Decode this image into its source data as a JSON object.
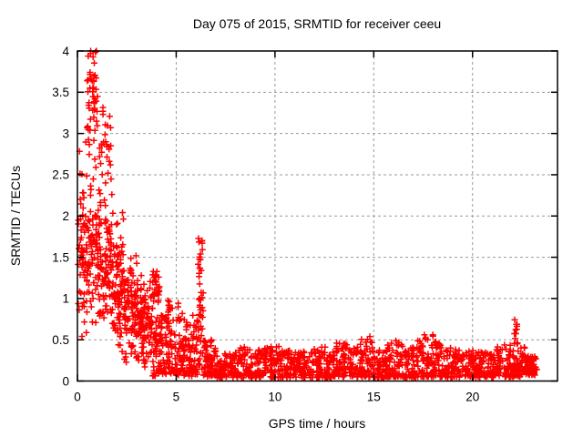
{
  "page": {
    "background_color": "#ffffff"
  },
  "chart_data": {
    "type": "scatter",
    "title": "Day 075 of 2015, SRMTID for receiver ceeu",
    "xlabel": "GPS time / hours",
    "ylabel": "SRMTID / TECUs",
    "xlim": [
      0,
      24.3
    ],
    "ylim": [
      0,
      4
    ],
    "xticks": [
      0,
      5,
      10,
      15,
      20
    ],
    "yticks": [
      0,
      0.5,
      1,
      1.5,
      2,
      2.5,
      3,
      3.5,
      4
    ],
    "grid": {
      "show": true,
      "color": "#9a9a9a",
      "dash": "3 3",
      "width": 1
    },
    "axis": {
      "color": "#000000",
      "border_width": 1.5,
      "tick_length": 7,
      "tick_width": 1.5,
      "ticks_mirrored": true
    },
    "legend": {
      "show": false
    },
    "marker": {
      "shape": "plus",
      "color": "#ff0000",
      "size": 7,
      "stroke_width": 1.5
    },
    "series": [
      {
        "name": "SRMTID",
        "description": "Dense scatter: high noisy values (0.3-4.0, clipped at 4) during hours 0-2.5 decaying to a low baseline ~0.05-0.35 from hour 7 to 23.3; vertical spike to 1.73 at hour 6.2; small bumps to ~0.5 near hours 13.4, 14.6, 16.0, 17.6; vertical spike to 0.76 at hour 22.2; data ends ~23.3 h",
        "point_cloud_model": {
          "seed": 20150075,
          "comment": "segments: [x_start, x_end, n_points, y_low, y_high, mode(m=triangular,p=power-low-biased,u=uniform), k]",
          "segments": [
            [
              0.03,
              0.48,
              60,
              0.3,
              2.95,
              "m",
              0
            ],
            [
              0.48,
              1.02,
              52,
              2.8,
              4.1,
              "m",
              0
            ],
            [
              0.45,
              1.05,
              75,
              0.55,
              2.8,
              "m",
              0
            ],
            [
              1.05,
              1.7,
              28,
              2.2,
              3.48,
              "m",
              0
            ],
            [
              1.05,
              1.75,
              95,
              0.5,
              2.35,
              "m",
              0
            ],
            [
              1.75,
              2.35,
              95,
              0.3,
              2.05,
              "m",
              0
            ],
            [
              2.35,
              3.05,
              95,
              0.15,
              1.6,
              "m",
              0
            ],
            [
              3.05,
              3.8,
              95,
              0.1,
              1.38,
              "m",
              0
            ],
            [
              3.78,
              4.15,
              30,
              0.85,
              1.45,
              "m",
              0
            ],
            [
              3.8,
              4.55,
              85,
              0.06,
              0.8,
              "p",
              1.4
            ],
            [
              4.55,
              5.35,
              90,
              0.07,
              1.0,
              "p",
              1.5
            ],
            [
              5.35,
              6.08,
              80,
              0.06,
              0.8,
              "p",
              1.5
            ],
            [
              6.1,
              6.38,
              48,
              0.12,
              1.73,
              "p",
              1.1
            ],
            [
              6.38,
              7.0,
              70,
              0.05,
              0.5,
              "p",
              1.4
            ],
            [
              7.0,
              8.0,
              78,
              0.04,
              0.34,
              "p",
              1.5
            ],
            [
              8.0,
              8.6,
              48,
              0.04,
              0.42,
              "p",
              1.5
            ],
            [
              8.6,
              9.4,
              62,
              0.04,
              0.38,
              "p",
              1.5
            ],
            [
              9.4,
              10.2,
              62,
              0.04,
              0.42,
              "p",
              1.5
            ],
            [
              10.2,
              11.0,
              62,
              0.04,
              0.4,
              "p",
              1.5
            ],
            [
              11.0,
              11.8,
              62,
              0.04,
              0.36,
              "p",
              1.5
            ],
            [
              11.8,
              12.6,
              62,
              0.04,
              0.42,
              "p",
              1.5
            ],
            [
              12.6,
              13.1,
              40,
              0.04,
              0.36,
              "p",
              1.5
            ],
            [
              13.1,
              13.75,
              55,
              0.05,
              0.5,
              "p",
              1.5
            ],
            [
              13.75,
              14.3,
              45,
              0.05,
              0.44,
              "p",
              1.5
            ],
            [
              14.3,
              15.0,
              60,
              0.05,
              0.55,
              "p",
              1.5
            ],
            [
              15.0,
              15.6,
              48,
              0.04,
              0.38,
              "p",
              1.5
            ],
            [
              15.6,
              16.4,
              65,
              0.05,
              0.52,
              "p",
              1.5
            ],
            [
              16.4,
              17.2,
              62,
              0.04,
              0.42,
              "p",
              1.5
            ],
            [
              17.2,
              18.0,
              65,
              0.05,
              0.56,
              "p",
              1.5
            ],
            [
              18.0,
              18.7,
              55,
              0.05,
              0.48,
              "p",
              1.5
            ],
            [
              18.7,
              19.5,
              60,
              0.04,
              0.4,
              "p",
              1.5
            ],
            [
              19.5,
              20.3,
              60,
              0.04,
              0.37,
              "p",
              1.5
            ],
            [
              20.3,
              21.2,
              68,
              0.04,
              0.35,
              "p",
              1.5
            ],
            [
              21.2,
              22.0,
              62,
              0.05,
              0.44,
              "p",
              1.5
            ],
            [
              22.1,
              22.28,
              13,
              0.4,
              0.76,
              "u",
              1
            ],
            [
              22.0,
              22.65,
              55,
              0.05,
              0.42,
              "p",
              1.4
            ],
            [
              22.65,
              23.25,
              72,
              0.07,
              0.3,
              "p",
              1.1
            ]
          ]
        }
      }
    ]
  }
}
